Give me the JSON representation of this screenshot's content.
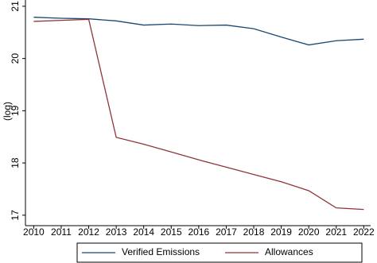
{
  "chart_data": {
    "type": "line",
    "ylabel": "(log)",
    "x": [
      2010,
      2011,
      2012,
      2013,
      2014,
      2015,
      2016,
      2017,
      2018,
      2019,
      2020,
      2021,
      2022
    ],
    "series": [
      {
        "name": "Verified Emissions",
        "color": "#1a476f",
        "values": [
          20.79,
          20.77,
          20.76,
          20.72,
          20.64,
          20.66,
          20.63,
          20.64,
          20.57,
          20.41,
          20.26,
          20.34,
          20.37
        ]
      },
      {
        "name": "Allowances",
        "color": "#90353b",
        "values": [
          20.71,
          20.73,
          20.75,
          18.49,
          18.36,
          18.21,
          18.06,
          17.92,
          17.78,
          17.64,
          17.47,
          17.14,
          17.11
        ]
      }
    ],
    "xlim": [
      2009.7,
      2022.25
    ],
    "xticks": [
      2010,
      2011,
      2012,
      2013,
      2014,
      2015,
      2016,
      2017,
      2018,
      2019,
      2020,
      2021,
      2022
    ],
    "ylim": [
      16.8,
      21.12
    ],
    "yticks": [
      17,
      18,
      19,
      20,
      21
    ],
    "grid": false,
    "legend": "bottom"
  }
}
